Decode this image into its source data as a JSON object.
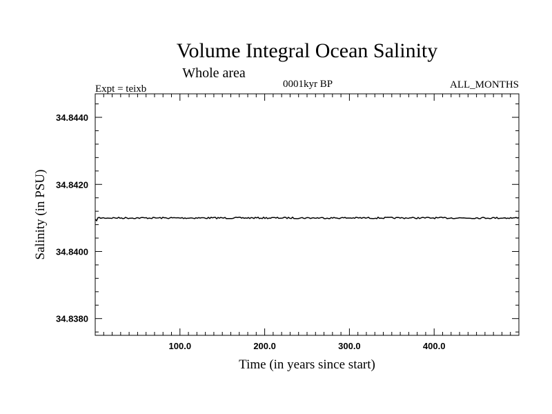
{
  "chart_data": {
    "type": "line",
    "title": "Volume Integral Ocean Salinity",
    "subtitle": "Whole area",
    "annotations": {
      "left": "Expt = teixb",
      "center": "0001kyr BP",
      "right": "ALL_MONTHS"
    },
    "xlabel": "Time (in years since start)",
    "ylabel": "Salinity (in PSU)",
    "xlim": [
      0,
      500
    ],
    "ylim": [
      34.8375,
      34.8447
    ],
    "x_ticks": [
      100,
      200,
      300,
      400
    ],
    "x_tick_labels": [
      "100.0",
      "200.0",
      "300.0",
      "400.0"
    ],
    "y_ticks": [
      34.838,
      34.84,
      34.842,
      34.844
    ],
    "y_tick_labels": [
      "34.8380",
      "34.8400",
      "34.8420",
      "34.8440"
    ],
    "grid": false,
    "series": [
      {
        "x": [
          0,
          25,
          50,
          75,
          100,
          125,
          150,
          175,
          200,
          225,
          250,
          275,
          300,
          325,
          350,
          375,
          400,
          425,
          450,
          475,
          500
        ],
        "values": [
          34.841,
          34.841,
          34.841,
          34.841,
          34.841,
          34.841,
          34.841,
          34.841,
          34.841,
          34.841,
          34.841,
          34.841,
          34.841,
          34.841,
          34.841,
          34.841,
          34.841,
          34.841,
          34.841,
          34.841,
          34.841
        ]
      }
    ]
  }
}
